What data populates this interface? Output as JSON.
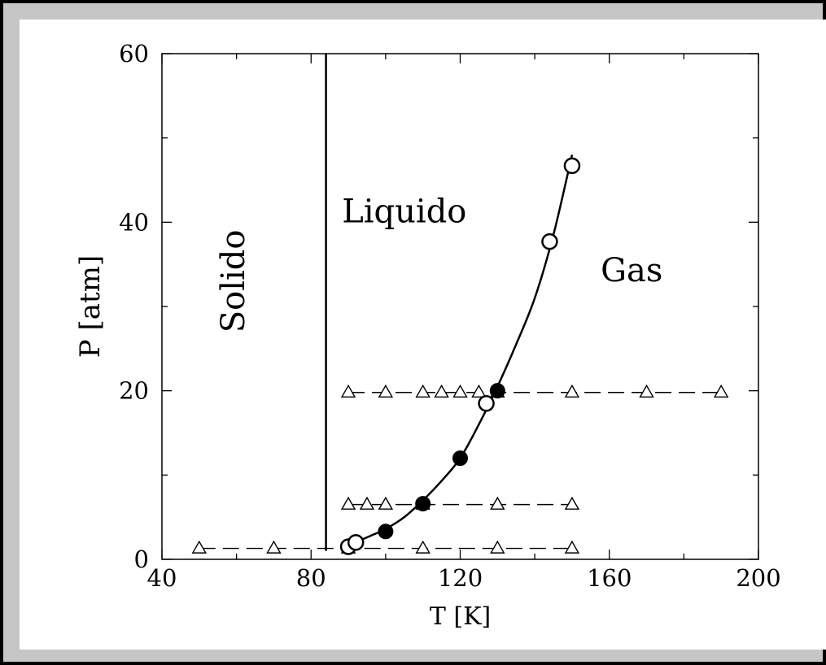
{
  "chart_data": {
    "type": "scatter",
    "title": "",
    "xlabel": "T [K]",
    "ylabel": "P [atm]",
    "xlim": [
      40,
      200
    ],
    "ylim": [
      0,
      60
    ],
    "xticks": [
      40,
      80,
      120,
      160,
      200
    ],
    "yticks": [
      0,
      20,
      40,
      60
    ],
    "grid": false,
    "regions": [
      {
        "label": "Solido",
        "x": 62,
        "y": 33,
        "rotation": -90
      },
      {
        "label": "Liquido",
        "x": 105,
        "y": 40
      },
      {
        "label": "Gas",
        "x": 166,
        "y": 33
      }
    ],
    "melting_line": {
      "x": 84,
      "y": [
        1,
        60
      ]
    },
    "coexistence_curve": {
      "x": [
        89,
        92,
        96,
        100,
        105,
        110,
        115,
        120,
        125,
        130,
        135,
        140,
        145,
        150
      ],
      "y": [
        1.2,
        2,
        2.8,
        3.6,
        5,
        7,
        9.3,
        12,
        16,
        20.5,
        25.5,
        31,
        38.5,
        48
      ]
    },
    "series": [
      {
        "name": "",
        "marker": "triangle",
        "linestyle": "dashed",
        "x": [
          50,
          70,
          90,
          110,
          130,
          150
        ],
        "y": [
          1.3,
          1.3,
          1.3,
          1.3,
          1.3,
          1.3
        ]
      },
      {
        "name": "",
        "marker": "triangle",
        "linestyle": "dashed",
        "x": [
          90,
          95,
          100,
          110,
          130,
          150
        ],
        "y": [
          6.5,
          6.5,
          6.5,
          6.5,
          6.5,
          6.5
        ]
      },
      {
        "name": "",
        "marker": "triangle",
        "linestyle": "dashed",
        "x": [
          90,
          100,
          110,
          115,
          120,
          125,
          130,
          150,
          170,
          190
        ],
        "y": [
          19.8,
          19.8,
          19.8,
          19.8,
          19.8,
          19.8,
          19.8,
          19.8,
          19.8,
          19.8
        ]
      },
      {
        "name": "",
        "marker": "filled-circle",
        "linestyle": "none",
        "x": [
          100,
          110,
          120,
          130
        ],
        "y": [
          3.3,
          6.6,
          12,
          20
        ]
      },
      {
        "name": "",
        "marker": "open-circle",
        "linestyle": "none",
        "x": [
          90,
          92,
          127,
          144,
          150
        ],
        "y": [
          1.5,
          2,
          18.5,
          37.7,
          46.7
        ]
      }
    ]
  }
}
